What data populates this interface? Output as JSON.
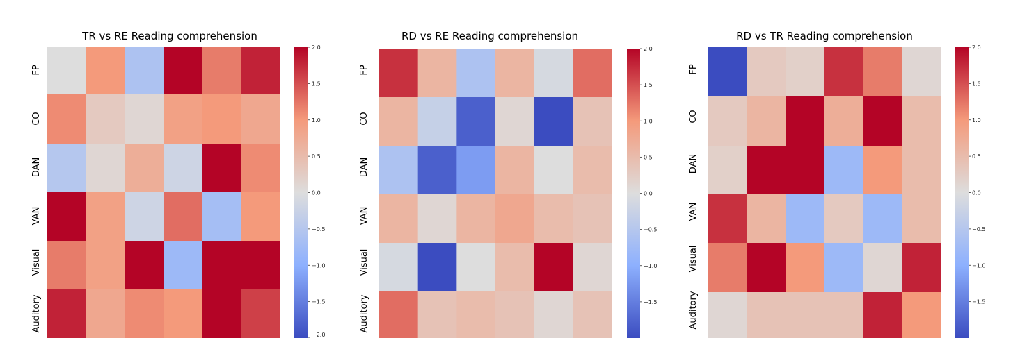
{
  "chart_data": [
    {
      "type": "heatmap",
      "title": "TR vs RE Reading comprehension",
      "row_labels": [
        "FP",
        "CO",
        "DAN",
        "VAN",
        "Visual",
        "Auditory"
      ],
      "col_labels": [
        "",
        "",
        "",
        "",
        "",
        ""
      ],
      "values": [
        [
          0.0,
          1.0,
          -0.6,
          2.0,
          1.2,
          1.8
        ],
        [
          1.1,
          0.3,
          0.1,
          0.9,
          1.0,
          0.8
        ],
        [
          -0.5,
          0.1,
          0.7,
          -0.2,
          2.0,
          1.1
        ],
        [
          2.0,
          0.9,
          -0.2,
          1.3,
          -0.7,
          1.0
        ],
        [
          1.2,
          0.9,
          2.0,
          -0.8,
          2.0,
          2.0
        ],
        [
          1.8,
          0.8,
          1.1,
          1.0,
          2.0,
          1.6
        ]
      ],
      "colorbar": {
        "vmin": -2.0,
        "vmax": 2.0,
        "ticks": [
          "2.0",
          "1.5",
          "1.0",
          "0.5",
          "0.0",
          "−0.5",
          "−1.0",
          "−1.5",
          "−2.0"
        ],
        "tick_values": [
          2.0,
          1.5,
          1.0,
          0.5,
          0.0,
          -0.5,
          -1.0,
          -1.5,
          -2.0
        ]
      },
      "colormap": "coolwarm"
    },
    {
      "type": "heatmap",
      "title": "RD vs RE Reading comprehension",
      "row_labels": [
        "FP",
        "CO",
        "DAN",
        "VAN",
        "Visual",
        "Auditory"
      ],
      "col_labels": [
        "",
        "",
        "",
        "",
        "",
        ""
      ],
      "values": [
        [
          1.7,
          0.6,
          -0.6,
          0.6,
          -0.1,
          1.3
        ],
        [
          0.6,
          -0.3,
          -1.8,
          0.1,
          -2.0,
          0.4
        ],
        [
          -0.6,
          -1.8,
          -1.2,
          0.6,
          0.0,
          0.5
        ],
        [
          0.6,
          0.1,
          0.6,
          0.8,
          0.5,
          0.4
        ],
        [
          -0.1,
          -2.0,
          0.0,
          0.5,
          2.0,
          0.1
        ],
        [
          1.3,
          0.4,
          0.5,
          0.4,
          0.1,
          0.4
        ]
      ],
      "colorbar": {
        "vmin": -2.0,
        "vmax": 2.0,
        "ticks": [
          "2.0",
          "1.5",
          "1.0",
          "0.5",
          "0.0",
          "−0.5",
          "−1.0",
          "−1.5"
        ],
        "tick_values": [
          2.0,
          1.5,
          1.0,
          0.5,
          0.0,
          -0.5,
          -1.0,
          -1.5
        ]
      },
      "colormap": "coolwarm"
    },
    {
      "type": "heatmap",
      "title": "RD vs TR Reading comprehension",
      "row_labels": [
        "FP",
        "CO",
        "DAN",
        "VAN",
        "Visual",
        "Auditory"
      ],
      "col_labels": [
        "",
        "",
        "",
        "",
        "",
        ""
      ],
      "values": [
        [
          -2.0,
          0.3,
          0.2,
          1.7,
          1.2,
          0.1
        ],
        [
          0.3,
          0.6,
          2.0,
          0.7,
          2.0,
          0.5
        ],
        [
          0.2,
          2.0,
          2.0,
          -0.8,
          1.0,
          0.5
        ],
        [
          1.7,
          0.6,
          -0.8,
          0.3,
          -0.8,
          0.5
        ],
        [
          1.2,
          2.0,
          1.0,
          -0.8,
          0.1,
          1.8
        ],
        [
          0.1,
          0.4,
          0.4,
          0.4,
          1.8,
          1.0
        ]
      ],
      "colorbar": {
        "vmin": -2.0,
        "vmax": 2.0,
        "ticks": [
          "2.0",
          "1.5",
          "1.0",
          "0.5",
          "0.0",
          "−0.5",
          "−1.0",
          "−1.5"
        ],
        "tick_values": [
          2.0,
          1.5,
          1.0,
          0.5,
          0.0,
          -0.5,
          -1.0,
          -1.5
        ]
      },
      "colormap": "coolwarm"
    }
  ]
}
